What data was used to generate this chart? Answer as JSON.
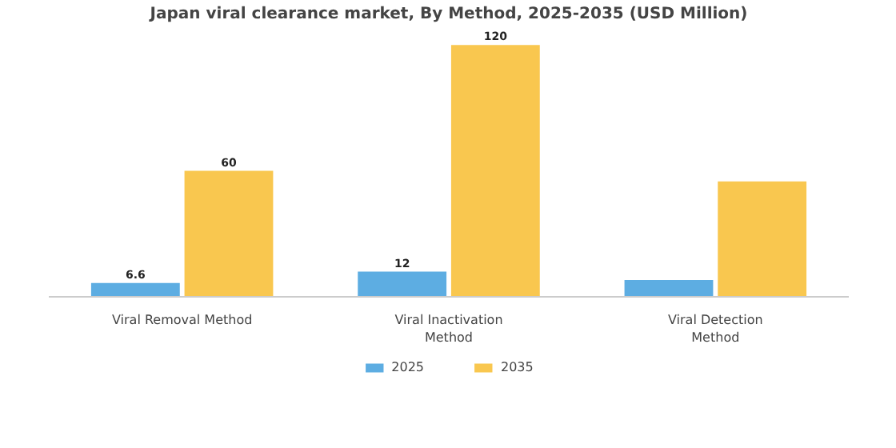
{
  "chart_data": {
    "type": "bar",
    "title": "Japan viral clearance market, By Method, 2025-2035 (USD Million)",
    "categories": [
      "Viral Removal Method",
      "Viral Inactivation Method",
      "Viral Detection Method"
    ],
    "series": [
      {
        "name": "2025",
        "color": "#5dade2",
        "values": [
          6.6,
          12,
          8
        ],
        "value_labels": [
          "6.6",
          "12",
          null
        ]
      },
      {
        "name": "2035",
        "color": "#f9c74f",
        "values": [
          60,
          120,
          55
        ],
        "value_labels": [
          "60",
          "120",
          null
        ]
      }
    ],
    "legend": "bottom"
  }
}
